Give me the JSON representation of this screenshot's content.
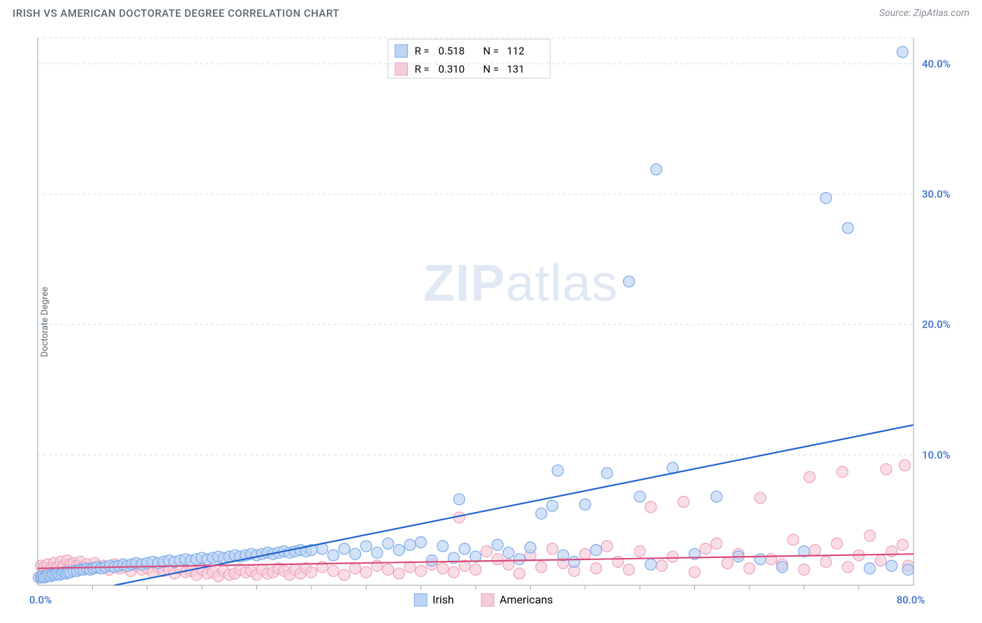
{
  "title": "IRISH VS AMERICAN DOCTORATE DEGREE CORRELATION CHART",
  "source_label": "Source: ZipAtlas.com",
  "ylabel": "Doctorate Degree",
  "watermark": {
    "bold": "ZIP",
    "light": "atlas"
  },
  "chart": {
    "type": "scatter",
    "background_color": "#ffffff",
    "grid_color": "#d8dde2",
    "axis_color": "#9aa4af",
    "tick_label_color": "#3b6fc9",
    "xlim": [
      0,
      80
    ],
    "ylim": [
      0,
      42
    ],
    "x_ticks": {
      "major": [
        0,
        80
      ],
      "minor_step": 5,
      "labels": [
        "0.0%",
        "80.0%"
      ]
    },
    "y_ticks": {
      "positions": [
        10,
        20,
        30,
        40
      ],
      "labels": [
        "10.0%",
        "20.0%",
        "30.0%",
        "40.0%"
      ]
    },
    "series": [
      {
        "name": "Irish",
        "color_fill": "#bcd3f2",
        "color_stroke": "#7caaea",
        "color_line": "#1e63d0",
        "legend_swatch_fill": "#bcd3f2",
        "r_value": "0.518",
        "n_value": "112",
        "trend": {
          "x1": 7,
          "y1": 0,
          "x2": 80,
          "y2": 12.3
        },
        "points": [
          [
            0.1,
            0.6
          ],
          [
            0.3,
            0.6
          ],
          [
            0.4,
            0.7
          ],
          [
            0.6,
            0.6
          ],
          [
            0.8,
            0.7
          ],
          [
            1.0,
            0.8
          ],
          [
            1.2,
            0.7
          ],
          [
            1.4,
            0.8
          ],
          [
            1.6,
            0.8
          ],
          [
            1.8,
            0.9
          ],
          [
            2.0,
            0.8
          ],
          [
            2.2,
            0.9
          ],
          [
            2.4,
            1.0
          ],
          [
            2.6,
            0.9
          ],
          [
            2.8,
            1.0
          ],
          [
            3.0,
            1.0
          ],
          [
            3.3,
            1.1
          ],
          [
            3.6,
            1.1
          ],
          [
            3.9,
            1.2
          ],
          [
            4.2,
            1.2
          ],
          [
            4.5,
            1.3
          ],
          [
            4.8,
            1.2
          ],
          [
            5.1,
            1.3
          ],
          [
            5.4,
            1.4
          ],
          [
            5.8,
            1.3
          ],
          [
            6.2,
            1.4
          ],
          [
            6.6,
            1.5
          ],
          [
            7.0,
            1.4
          ],
          [
            7.4,
            1.5
          ],
          [
            7.8,
            1.6
          ],
          [
            8.2,
            1.5
          ],
          [
            8.6,
            1.6
          ],
          [
            9.0,
            1.7
          ],
          [
            9.5,
            1.6
          ],
          [
            10.0,
            1.7
          ],
          [
            10.5,
            1.8
          ],
          [
            11.0,
            1.7
          ],
          [
            11.5,
            1.8
          ],
          [
            12.0,
            1.9
          ],
          [
            12.5,
            1.8
          ],
          [
            13.0,
            1.9
          ],
          [
            13.5,
            2.0
          ],
          [
            14.0,
            1.9
          ],
          [
            14.5,
            2.0
          ],
          [
            15.0,
            2.1
          ],
          [
            15.5,
            2.0
          ],
          [
            16.0,
            2.1
          ],
          [
            16.5,
            2.2
          ],
          [
            17.0,
            2.1
          ],
          [
            17.5,
            2.2
          ],
          [
            18.0,
            2.3
          ],
          [
            18.5,
            2.2
          ],
          [
            19.0,
            2.3
          ],
          [
            19.5,
            2.4
          ],
          [
            20.0,
            2.3
          ],
          [
            20.5,
            2.4
          ],
          [
            21.0,
            2.5
          ],
          [
            21.5,
            2.4
          ],
          [
            22.0,
            2.5
          ],
          [
            22.5,
            2.6
          ],
          [
            23.0,
            2.5
          ],
          [
            23.5,
            2.6
          ],
          [
            24.0,
            2.7
          ],
          [
            24.5,
            2.6
          ],
          [
            25.0,
            2.7
          ],
          [
            26.0,
            2.8
          ],
          [
            27.0,
            2.3
          ],
          [
            28.0,
            2.8
          ],
          [
            29.0,
            2.4
          ],
          [
            30.0,
            3.0
          ],
          [
            31.0,
            2.5
          ],
          [
            32.0,
            3.2
          ],
          [
            33.0,
            2.7
          ],
          [
            34.0,
            3.1
          ],
          [
            35.0,
            3.3
          ],
          [
            36.0,
            1.9
          ],
          [
            37.0,
            3.0
          ],
          [
            38.0,
            2.1
          ],
          [
            38.5,
            6.6
          ],
          [
            39.0,
            2.8
          ],
          [
            40.0,
            2.2
          ],
          [
            42.0,
            3.1
          ],
          [
            43.0,
            2.5
          ],
          [
            44.0,
            2.0
          ],
          [
            45.0,
            2.9
          ],
          [
            46.0,
            5.5
          ],
          [
            47.0,
            6.1
          ],
          [
            47.5,
            8.8
          ],
          [
            48.0,
            2.3
          ],
          [
            49.0,
            1.8
          ],
          [
            50.0,
            6.2
          ],
          [
            51.0,
            2.7
          ],
          [
            52.0,
            8.6
          ],
          [
            54.0,
            23.3
          ],
          [
            55.0,
            6.8
          ],
          [
            56.0,
            1.6
          ],
          [
            56.5,
            31.9
          ],
          [
            58.0,
            9.0
          ],
          [
            60.0,
            2.4
          ],
          [
            62.0,
            6.8
          ],
          [
            64.0,
            2.2
          ],
          [
            66.0,
            2.0
          ],
          [
            68.0,
            1.4
          ],
          [
            70.0,
            2.6
          ],
          [
            72.0,
            29.7
          ],
          [
            74.0,
            27.4
          ],
          [
            76.0,
            1.3
          ],
          [
            78.0,
            1.5
          ],
          [
            79.0,
            40.9
          ],
          [
            79.5,
            1.2
          ]
        ]
      },
      {
        "name": "Americans",
        "color_fill": "#f6cbd9",
        "color_stroke": "#eea2bc",
        "color_line": "#d94b7a",
        "legend_swatch_fill": "#f6cbd9",
        "r_value": "0.310",
        "n_value": "131",
        "trend": {
          "x1": 0,
          "y1": 1.3,
          "x2": 80,
          "y2": 2.4
        },
        "points": [
          [
            0.3,
            1.5
          ],
          [
            0.6,
            1.4
          ],
          [
            0.9,
            1.6
          ],
          [
            1.2,
            1.3
          ],
          [
            1.5,
            1.7
          ],
          [
            1.8,
            1.4
          ],
          [
            2.1,
            1.8
          ],
          [
            2.4,
            1.5
          ],
          [
            2.7,
            1.9
          ],
          [
            3.0,
            1.6
          ],
          [
            3.3,
            1.7
          ],
          [
            3.6,
            1.5
          ],
          [
            3.9,
            1.8
          ],
          [
            4.2,
            1.4
          ],
          [
            4.5,
            1.6
          ],
          [
            4.8,
            1.3
          ],
          [
            5.2,
            1.7
          ],
          [
            5.6,
            1.4
          ],
          [
            6.0,
            1.5
          ],
          [
            6.5,
            1.2
          ],
          [
            7.0,
            1.6
          ],
          [
            7.5,
            1.3
          ],
          [
            8.0,
            1.4
          ],
          [
            8.5,
            1.1
          ],
          [
            9.0,
            1.5
          ],
          [
            9.5,
            1.2
          ],
          [
            10.0,
            1.3
          ],
          [
            10.5,
            1.0
          ],
          [
            11.0,
            1.4
          ],
          [
            11.5,
            1.1
          ],
          [
            12.0,
            1.2
          ],
          [
            12.5,
            0.9
          ],
          [
            13.0,
            1.3
          ],
          [
            13.5,
            1.0
          ],
          [
            14.0,
            1.1
          ],
          [
            14.5,
            0.8
          ],
          [
            15.0,
            1.2
          ],
          [
            15.5,
            0.9
          ],
          [
            16.0,
            1.0
          ],
          [
            16.5,
            0.7
          ],
          [
            17.0,
            1.1
          ],
          [
            17.5,
            0.8
          ],
          [
            18.0,
            0.9
          ],
          [
            18.5,
            1.2
          ],
          [
            19.0,
            1.0
          ],
          [
            19.5,
            1.1
          ],
          [
            20.0,
            0.8
          ],
          [
            20.5,
            1.2
          ],
          [
            21.0,
            0.9
          ],
          [
            21.5,
            1.0
          ],
          [
            22.0,
            1.3
          ],
          [
            22.5,
            1.1
          ],
          [
            23.0,
            0.8
          ],
          [
            23.5,
            1.2
          ],
          [
            24.0,
            0.9
          ],
          [
            24.5,
            1.3
          ],
          [
            25.0,
            1.0
          ],
          [
            26.0,
            1.4
          ],
          [
            27.0,
            1.1
          ],
          [
            28.0,
            0.8
          ],
          [
            29.0,
            1.3
          ],
          [
            30.0,
            1.0
          ],
          [
            31.0,
            1.5
          ],
          [
            32.0,
            1.2
          ],
          [
            33.0,
            0.9
          ],
          [
            34.0,
            1.4
          ],
          [
            35.0,
            1.1
          ],
          [
            36.0,
            1.6
          ],
          [
            37.0,
            1.3
          ],
          [
            38.0,
            1.0
          ],
          [
            38.5,
            5.2
          ],
          [
            39.0,
            1.5
          ],
          [
            40.0,
            1.2
          ],
          [
            41.0,
            2.6
          ],
          [
            42.0,
            2.0
          ],
          [
            43.0,
            1.6
          ],
          [
            44.0,
            0.9
          ],
          [
            45.0,
            2.3
          ],
          [
            46.0,
            1.4
          ],
          [
            47.0,
            2.8
          ],
          [
            48.0,
            1.7
          ],
          [
            49.0,
            1.1
          ],
          [
            50.0,
            2.4
          ],
          [
            51.0,
            1.3
          ],
          [
            52.0,
            3.0
          ],
          [
            53.0,
            1.8
          ],
          [
            54.0,
            1.2
          ],
          [
            55.0,
            2.6
          ],
          [
            56.0,
            6.0
          ],
          [
            57.0,
            1.5
          ],
          [
            58.0,
            2.2
          ],
          [
            59.0,
            6.4
          ],
          [
            60.0,
            1.0
          ],
          [
            61.0,
            2.8
          ],
          [
            62.0,
            3.2
          ],
          [
            63.0,
            1.7
          ],
          [
            64.0,
            2.4
          ],
          [
            65.0,
            1.3
          ],
          [
            66.0,
            6.7
          ],
          [
            67.0,
            2.0
          ],
          [
            68.0,
            1.6
          ],
          [
            69.0,
            3.5
          ],
          [
            70.0,
            1.2
          ],
          [
            70.5,
            8.3
          ],
          [
            71.0,
            2.7
          ],
          [
            72.0,
            1.8
          ],
          [
            73.0,
            3.2
          ],
          [
            73.5,
            8.7
          ],
          [
            74.0,
            1.4
          ],
          [
            75.0,
            2.3
          ],
          [
            76.0,
            3.8
          ],
          [
            77.0,
            1.9
          ],
          [
            77.5,
            8.9
          ],
          [
            78.0,
            2.6
          ],
          [
            79.0,
            3.1
          ],
          [
            79.2,
            9.2
          ],
          [
            79.5,
            1.5
          ]
        ]
      }
    ],
    "legend_bottom": [
      {
        "label": "Irish",
        "swatch": "#bcd3f2",
        "stroke": "#7caaea"
      },
      {
        "label": "Americans",
        "swatch": "#f6cbd9",
        "stroke": "#eea2bc"
      }
    ]
  },
  "legend_top": {
    "R_label": "R =",
    "N_label": "N ="
  }
}
